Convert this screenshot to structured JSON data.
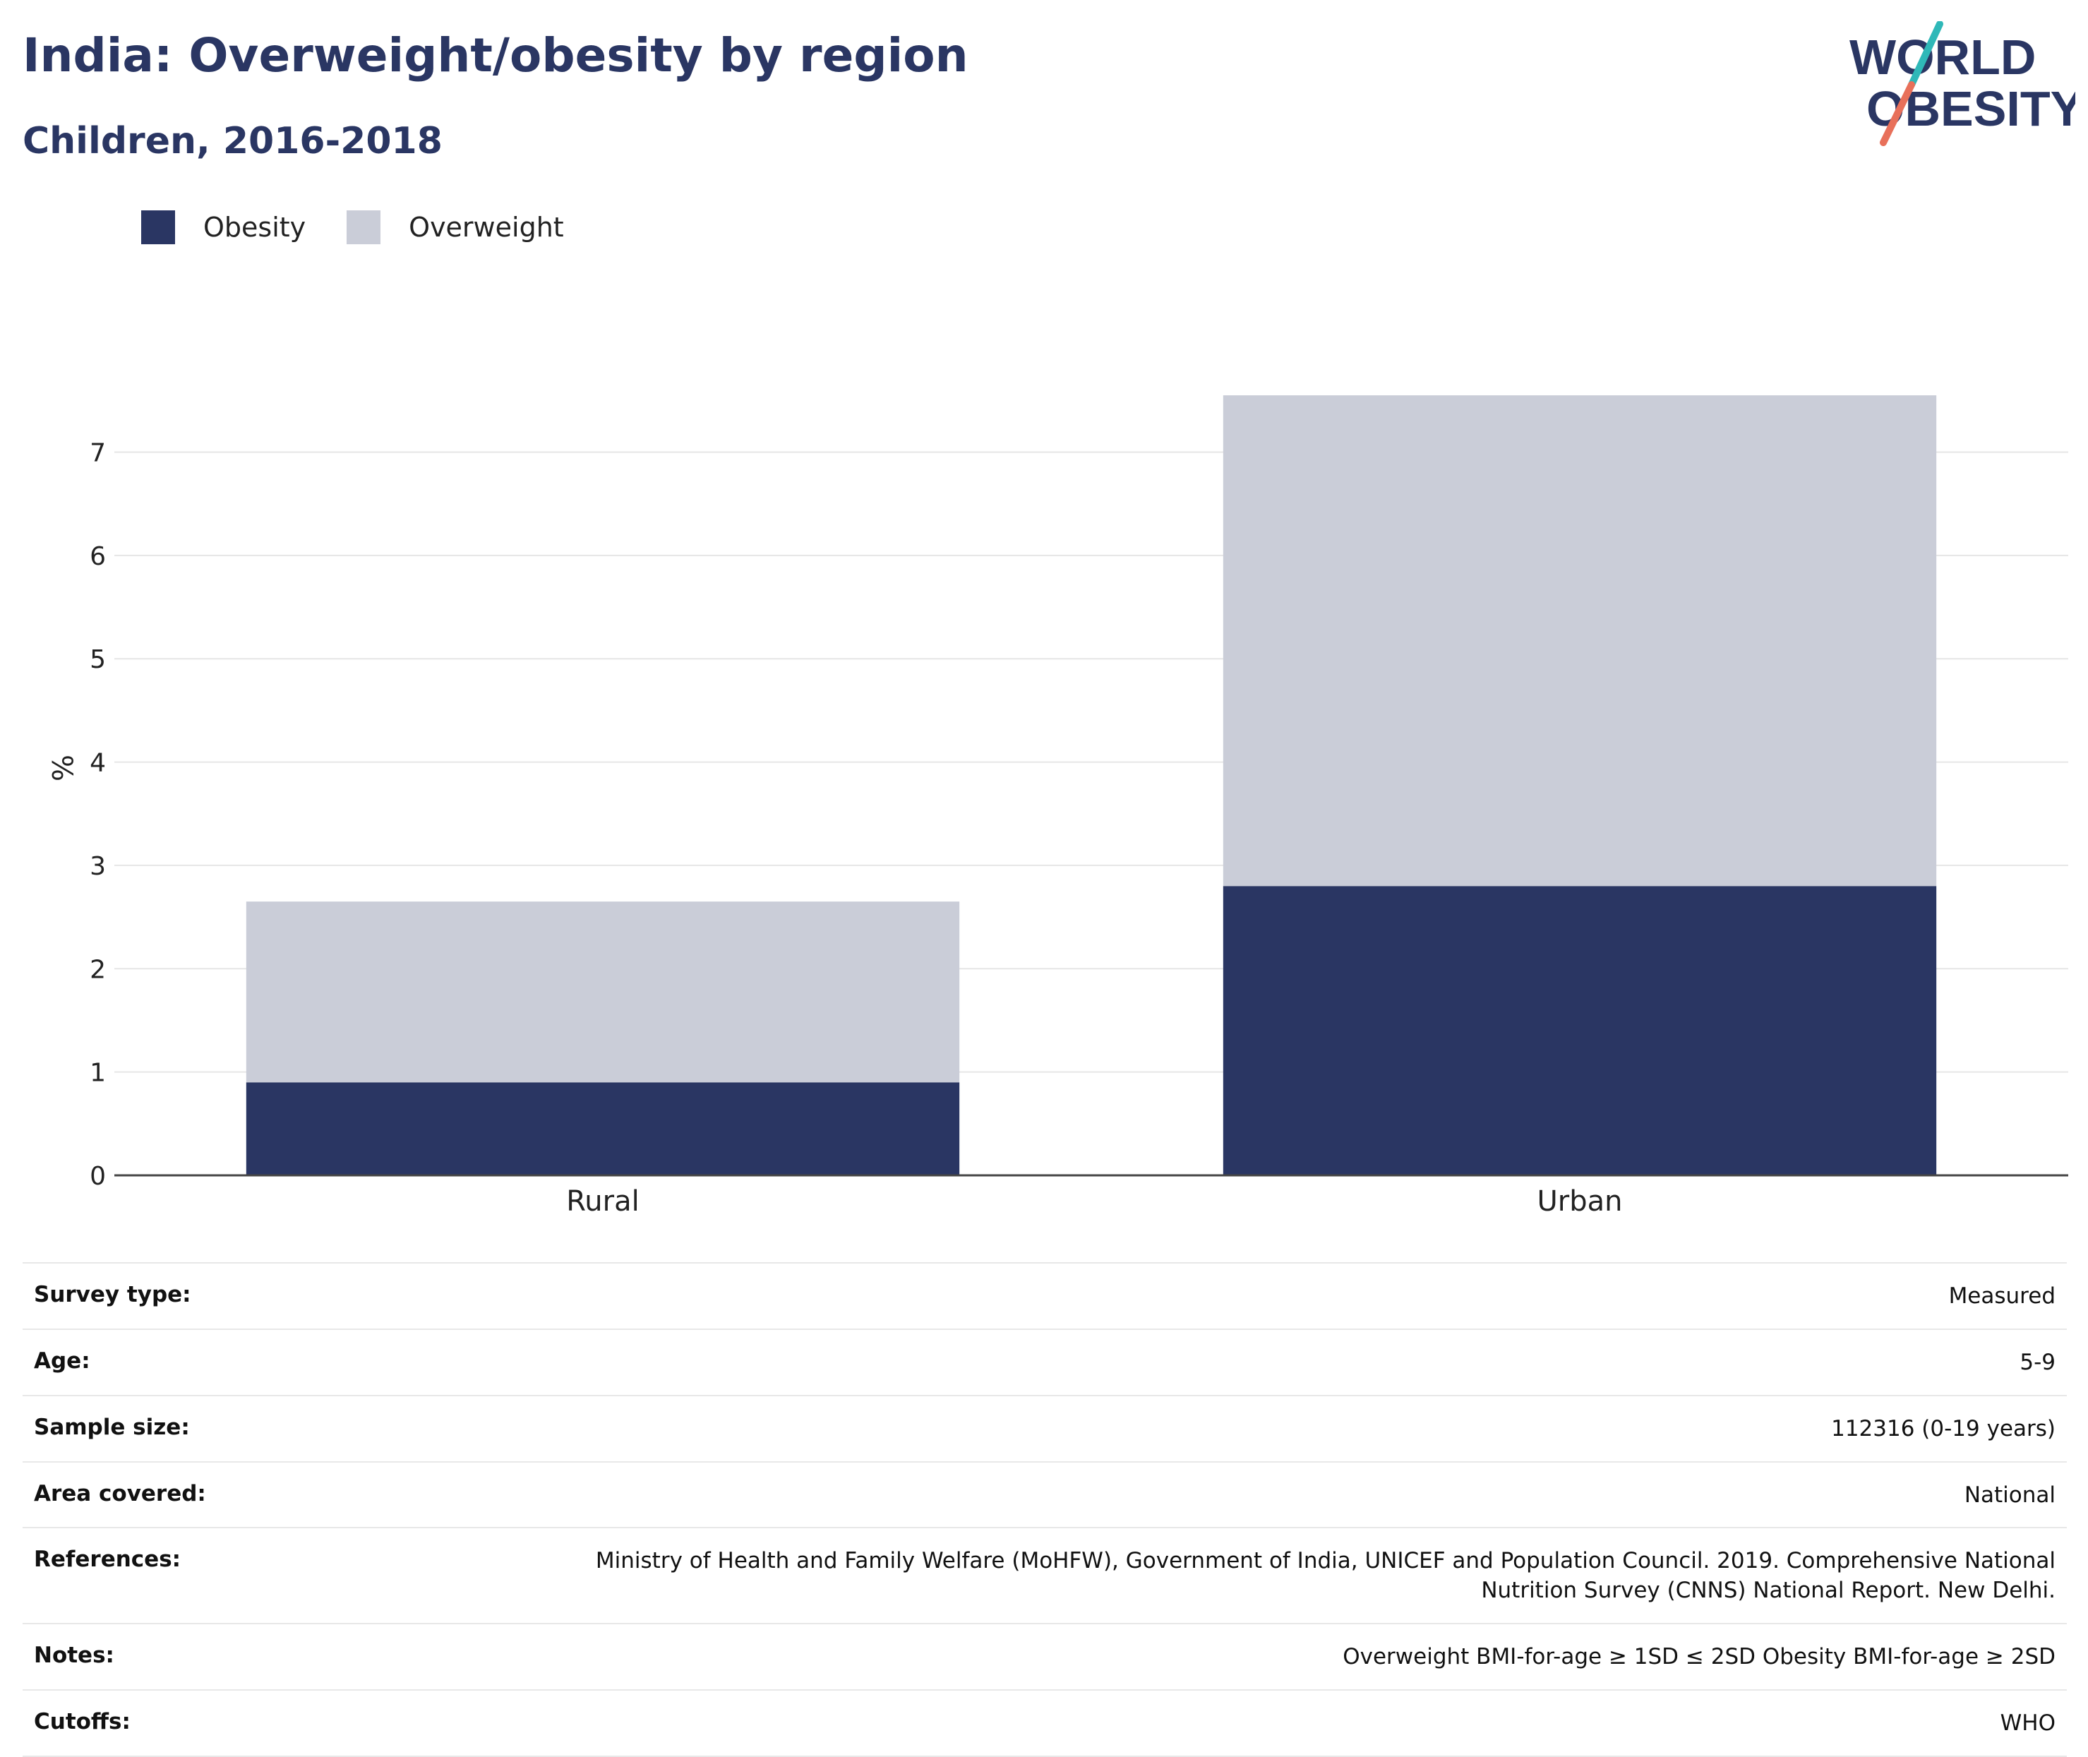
{
  "header": {
    "title": "India: Overweight/obesity by region",
    "subtitle": "Children, 2016-2018"
  },
  "logo": {
    "line1": "WORLD",
    "line2": "OBESITY"
  },
  "colors": {
    "obesity": "#2a3663",
    "overweight": "#cacdd8",
    "text": "#2a3663",
    "logo_teal": "#2fb8b8",
    "logo_red": "#e8705a"
  },
  "chart_data": {
    "type": "bar",
    "stacked": true,
    "categories": [
      "Rural",
      "Urban"
    ],
    "series": [
      {
        "name": "Obesity",
        "values": [
          0.9,
          2.8
        ]
      },
      {
        "name": "Overweight",
        "values": [
          1.75,
          4.75
        ]
      }
    ],
    "ylabel": "%",
    "xlabel": "",
    "ylim": [
      0,
      7.55
    ],
    "yticks": [
      0,
      1,
      2,
      3,
      4,
      5,
      6,
      7
    ],
    "legend": "top-left",
    "grid": true
  },
  "meta": [
    {
      "key": "Survey type:",
      "value": "Measured"
    },
    {
      "key": "Age:",
      "value": "5-9"
    },
    {
      "key": "Sample size:",
      "value": "112316 (0-19 years)"
    },
    {
      "key": "Area covered:",
      "value": "National"
    },
    {
      "key": "References:",
      "value": "Ministry of Health and Family Welfare (MoHFW), Government of India, UNICEF and Population Council. 2019. Comprehensive National Nutrition Survey (CNNS) National Report. New Delhi."
    },
    {
      "key": "Notes:",
      "value": "Overweight BMI-for-age ≥ 1SD ≤ 2SD Obesity BMI-for-age ≥ 2SD"
    },
    {
      "key": "Cutoffs:",
      "value": "WHO"
    }
  ]
}
